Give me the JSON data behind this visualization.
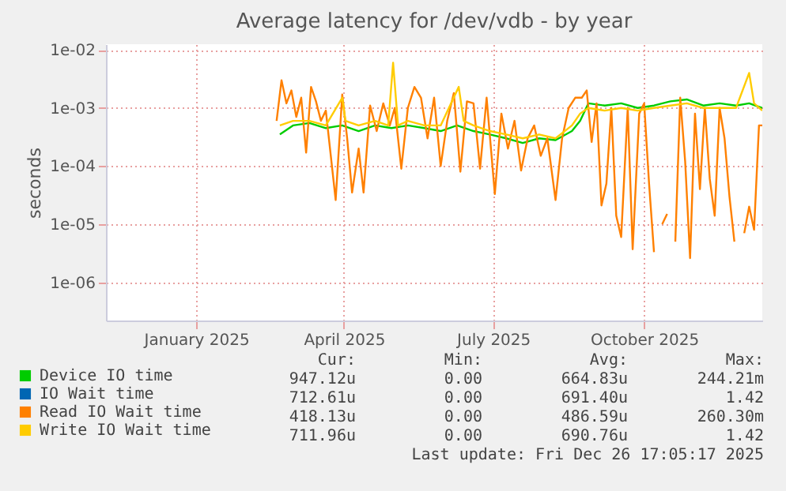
{
  "chart_data": {
    "type": "line",
    "title": "Average latency for /dev/vdb - by year",
    "ylabel": "seconds",
    "log": "y",
    "grid": true,
    "legend": "bottom",
    "xlim": [
      "2024-11-21",
      "2025-12-26"
    ],
    "xticks": [
      {
        "value": "2025-01-15",
        "label": "January 2025"
      },
      {
        "value": "2025-04-15",
        "label": "April 2025"
      },
      {
        "value": "2025-07-15",
        "label": "July 2025"
      },
      {
        "value": "2025-10-15",
        "label": "October 2025"
      }
    ],
    "ylim": [
      2.2e-07,
      0.0125
    ],
    "yticks": [
      {
        "value": 1e-06,
        "label": "1e-06"
      },
      {
        "value": 1e-05,
        "label": "1e-05"
      },
      {
        "value": 0.0001,
        "label": "1e-04"
      },
      {
        "value": 0.001,
        "label": "1e-03"
      },
      {
        "value": 0.01,
        "label": "1e-02"
      }
    ],
    "series": [
      {
        "name": "Device IO time",
        "color": "#00cc00",
        "x": [
          "2025-03-07",
          "2025-03-15",
          "2025-03-25",
          "2025-04-04",
          "2025-04-14",
          "2025-04-24",
          "2025-05-04",
          "2025-05-14",
          "2025-05-24",
          "2025-06-03",
          "2025-06-13",
          "2025-06-23",
          "2025-07-03",
          "2025-07-13",
          "2025-07-23",
          "2025-08-02",
          "2025-08-12",
          "2025-08-22",
          "2025-09-01",
          "2025-09-06",
          "2025-09-11",
          "2025-09-21",
          "2025-10-01",
          "2025-10-11",
          "2025-10-21",
          "2025-10-31",
          "2025-11-10",
          "2025-11-20",
          "2025-11-30",
          "2025-12-10",
          "2025-12-18",
          "2025-12-26"
        ],
        "values": [
          0.00035,
          0.0005,
          0.00055,
          0.00045,
          0.0005,
          0.0004,
          0.0005,
          0.00045,
          0.0005,
          0.00045,
          0.0004,
          0.0005,
          0.0004,
          0.00035,
          0.0003,
          0.00025,
          0.0003,
          0.00028,
          0.0004,
          0.0006,
          0.0012,
          0.0011,
          0.0012,
          0.001,
          0.0011,
          0.0013,
          0.0014,
          0.0011,
          0.0012,
          0.0011,
          0.0012,
          0.001
        ]
      },
      {
        "name": "IO Wait time",
        "color": "#0066b3"
      },
      {
        "name": "Read IO Wait time",
        "color": "#ff8000",
        "x": [
          "2025-03-05",
          "2025-03-08",
          "2025-03-11",
          "2025-03-14",
          "2025-03-17",
          "2025-03-20",
          "2025-03-23",
          "2025-03-26",
          "2025-03-29",
          "2025-04-01",
          "2025-04-04",
          "2025-04-10",
          "2025-04-14",
          "2025-04-17",
          "2025-04-20",
          "2025-04-24",
          "2025-04-27",
          "2025-05-01",
          "2025-05-05",
          "2025-05-09",
          "2025-05-13",
          "2025-05-16",
          "2025-05-20",
          "2025-05-24",
          "2025-05-28",
          "2025-06-01",
          "2025-06-05",
          "2025-06-09",
          "2025-06-13",
          "2025-06-17",
          "2025-06-21",
          "2025-06-25",
          "2025-06-29",
          "2025-07-03",
          "2025-07-07",
          "2025-07-11",
          "2025-07-16",
          "2025-07-20",
          "2025-07-24",
          "2025-07-28",
          "2025-08-01",
          "2025-08-05",
          "2025-08-09",
          "2025-08-13",
          "2025-08-17",
          "2025-08-22",
          "2025-08-26",
          "2025-08-30",
          "2025-09-03",
          "2025-09-07",
          "2025-09-10",
          "2025-09-13",
          "2025-09-16",
          "2025-09-19",
          "2025-09-22",
          "2025-09-25",
          "2025-09-28",
          "2025-10-01",
          "2025-10-05",
          "2025-10-08",
          "2025-10-12",
          "2025-10-15",
          "2025-10-18",
          "2025-10-21",
          "2025-10-23",
          "2025-10-26",
          "2025-10-29",
          "2025-10-31",
          "2025-11-03",
          "2025-11-06",
          "2025-11-09",
          "2025-11-12",
          "2025-11-15",
          "2025-11-18",
          "2025-11-21",
          "2025-11-24",
          "2025-11-27",
          "2025-11-30",
          "2025-12-03",
          "2025-12-06",
          "2025-12-09",
          "2025-12-12",
          "2025-12-15",
          "2025-12-18",
          "2025-12-21",
          "2025-12-24",
          "2025-12-26"
        ],
        "values": [
          0.0006,
          0.003,
          0.0012,
          0.002,
          0.0007,
          0.0015,
          0.00017,
          0.0023,
          0.0013,
          0.0006,
          0.0009,
          2.6e-05,
          0.0017,
          0.0003,
          3.5e-05,
          0.0002,
          3.5e-05,
          0.0011,
          0.0004,
          0.0012,
          0.0005,
          0.001,
          9e-05,
          0.001,
          0.0023,
          0.0015,
          0.0003,
          0.0015,
          0.0001,
          0.0006,
          0.0018,
          8e-05,
          0.0013,
          0.0012,
          9e-05,
          0.0015,
          3.3e-05,
          0.0008,
          0.0002,
          0.0006,
          8.4e-05,
          0.0003,
          0.0005,
          0.00015,
          0.0003,
          2.6e-05,
          0.0003,
          0.001,
          0.0015,
          0.0015,
          0.002,
          0.00026,
          0.0012,
          2.1e-05,
          5e-05,
          0.001,
          1.4e-05,
          6e-06,
          0.001,
          3.7e-06,
          0.0008,
          0.0012,
          5e-05,
          3.3e-06,
          null,
          1e-05,
          1.5e-05,
          null,
          5e-06,
          0.0015,
          0.00012,
          2.6e-06,
          0.0008,
          4e-05,
          0.001,
          6e-05,
          1.4e-05,
          0.001,
          0.0003,
          3e-05,
          5e-06,
          null,
          7e-06,
          2e-05,
          8e-06,
          0.0005,
          0.0005
        ]
      },
      {
        "name": "Write IO Wait time",
        "color": "#ffcc00",
        "x": [
          "2025-03-07",
          "2025-03-15",
          "2025-03-25",
          "2025-04-04",
          "2025-04-14",
          "2025-04-16",
          "2025-04-24",
          "2025-05-04",
          "2025-05-12",
          "2025-05-15",
          "2025-05-18",
          "2025-05-24",
          "2025-06-03",
          "2025-06-13",
          "2025-06-24",
          "2025-06-27",
          "2025-07-03",
          "2025-07-13",
          "2025-07-23",
          "2025-08-02",
          "2025-08-12",
          "2025-08-22",
          "2025-09-01",
          "2025-09-06",
          "2025-09-11",
          "2025-09-21",
          "2025-10-01",
          "2025-10-11",
          "2025-10-21",
          "2025-10-31",
          "2025-11-10",
          "2025-11-20",
          "2025-11-30",
          "2025-12-10",
          "2025-12-18",
          "2025-12-21",
          "2025-12-26"
        ],
        "values": [
          0.0005,
          0.0006,
          0.0006,
          0.0005,
          0.0015,
          0.0006,
          0.0005,
          0.0006,
          0.0005,
          0.006,
          0.0005,
          0.0006,
          0.0005,
          0.0005,
          0.0023,
          0.0006,
          0.0005,
          0.0004,
          0.00035,
          0.0003,
          0.00035,
          0.0003,
          0.0005,
          0.0008,
          0.001,
          0.0009,
          0.001,
          0.0009,
          0.001,
          0.0011,
          0.0012,
          0.001,
          0.001,
          0.001,
          0.004,
          0.0012,
          0.0009
        ]
      }
    ],
    "annotations": [
      "Cur:",
      "Min:",
      "Avg:",
      "Max:",
      "947.12u",
      "0.00",
      "664.83u",
      "244.21m",
      "712.61u",
      "0.00",
      "691.40u",
      "1.42",
      "418.13u",
      "0.00",
      "486.59u",
      "260.30m",
      "711.96u",
      "0.00",
      "690.76u",
      "1.42",
      "Last update: Fri Dec 26 17:05:17 2025"
    ]
  }
}
